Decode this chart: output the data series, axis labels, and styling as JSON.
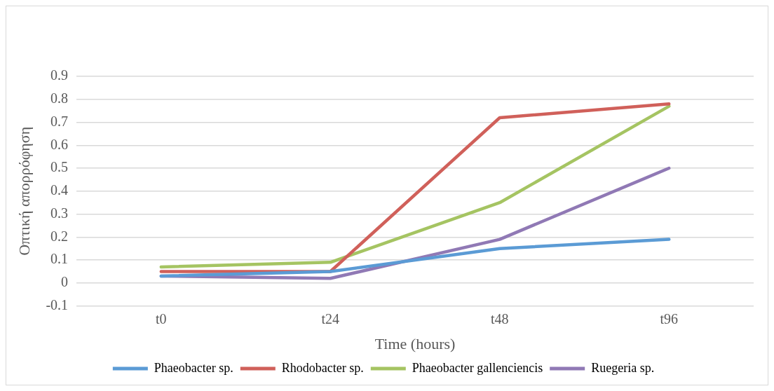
{
  "chart_data": {
    "type": "line",
    "xlabel": "Time (hours)",
    "ylabel": "Οπτική απορρόφηση",
    "categories": [
      "t0",
      "t24",
      "t48",
      "t96"
    ],
    "series": [
      {
        "name": "Phaeobacter sp.",
        "color": "#5b9bd5",
        "values": [
          0.03,
          0.05,
          0.15,
          0.19
        ]
      },
      {
        "name": "Rhodobacter sp.",
        "color": "#d0605a",
        "values": [
          0.05,
          0.05,
          0.72,
          0.78
        ]
      },
      {
        "name": "Phaeobacter gallenciencis",
        "color": "#a5c462",
        "values": [
          0.07,
          0.09,
          0.35,
          0.77
        ]
      },
      {
        "name": "Ruegeria sp.",
        "color": "#9079b5",
        "values": [
          0.03,
          0.02,
          0.19,
          0.5
        ]
      }
    ],
    "ylim": [
      -0.1,
      0.9
    ],
    "yticks": [
      -0.1,
      0,
      0.1,
      0.2,
      0.3,
      0.4,
      0.5,
      0.6,
      0.7,
      0.8,
      0.9
    ],
    "grid": "y",
    "legend": "bottom",
    "marker": "none",
    "line_style": "solid"
  }
}
